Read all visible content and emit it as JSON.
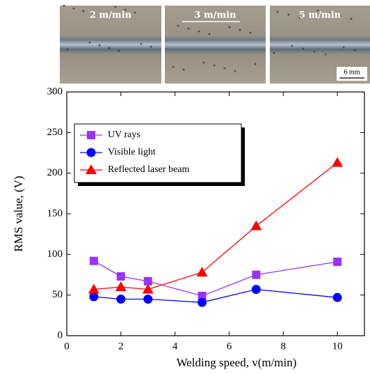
{
  "photos": [
    {
      "label": "2 m/min"
    },
    {
      "label": "3 m/min"
    },
    {
      "label": "5 m/min"
    }
  ],
  "scale_bar": "6 mm",
  "chart_data": {
    "type": "line",
    "x_label": "Welding speed, v(m/min)",
    "y_label": "RMS value, (V)",
    "x": [
      1,
      2,
      3,
      5,
      7,
      10
    ],
    "series": [
      {
        "name": "UV rays",
        "color": "#9933ff",
        "marker": "square",
        "values": [
          92,
          73,
          67,
          49,
          75,
          91
        ]
      },
      {
        "name": "Visible light",
        "color": "#0000ff",
        "marker": "circle",
        "values": [
          48,
          45,
          45,
          41,
          57,
          47
        ]
      },
      {
        "name": "Reflected laser beam",
        "color": "#ff0000",
        "marker": "triangle",
        "values": [
          57,
          60,
          57,
          78,
          135,
          213
        ]
      }
    ],
    "xlim": [
      0,
      11
    ],
    "xticks": [
      0,
      2,
      4,
      6,
      8,
      10
    ],
    "ylim": [
      0,
      300
    ],
    "yticks": [
      0,
      50,
      100,
      150,
      200,
      250,
      300
    ],
    "legend": "upper-left"
  }
}
